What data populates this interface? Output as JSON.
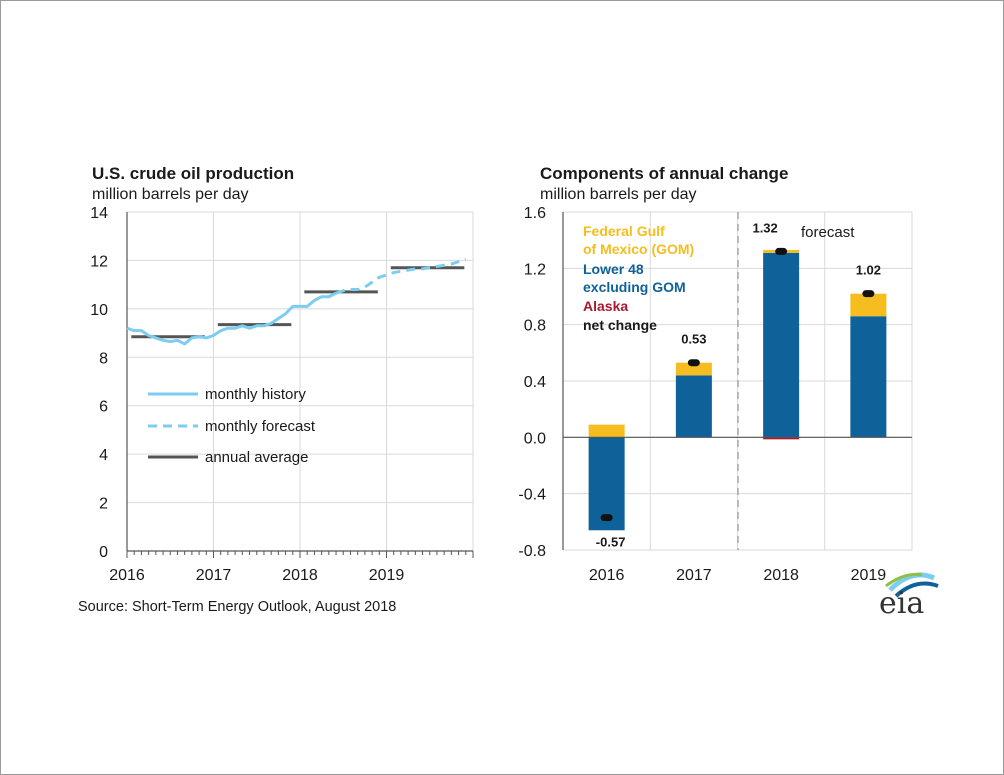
{
  "source": "Source: Short-Term Energy Outlook, August 2018",
  "logo": {
    "text": "eia"
  },
  "chart_data": [
    {
      "type": "line",
      "title": "U.S. crude oil production",
      "subtitle": "million barrels per day",
      "ylim": [
        0,
        14
      ],
      "yticks": [
        0,
        2,
        4,
        6,
        8,
        10,
        12,
        14
      ],
      "xlim": [
        2016,
        2020
      ],
      "xticks": [
        {
          "value": 2016,
          "label": "2016"
        },
        {
          "value": 2017,
          "label": "2017"
        },
        {
          "value": 2018,
          "label": "2018"
        },
        {
          "value": 2019,
          "label": "2019"
        }
      ],
      "grid": true,
      "legend": {
        "position": "lower-left",
        "entries": [
          {
            "label": "monthly history",
            "style": "solid"
          },
          {
            "label": "monthly forecast",
            "style": "dashed"
          },
          {
            "label": "annual average",
            "style": "bar"
          }
        ]
      },
      "colors": {
        "history": "#7ccdf0",
        "forecast": "#7ccdf0",
        "average": "#555555"
      },
      "series": [
        {
          "name": "monthly history",
          "x": [
            2016.0,
            2016.083,
            2016.167,
            2016.25,
            2016.333,
            2016.417,
            2016.5,
            2016.583,
            2016.667,
            2016.75,
            2016.833,
            2016.917,
            2017.0,
            2017.083,
            2017.167,
            2017.25,
            2017.333,
            2017.417,
            2017.5,
            2017.583,
            2017.667,
            2017.75,
            2017.833,
            2017.917,
            2018.0,
            2018.083,
            2018.167,
            2018.25,
            2018.333,
            2018.417
          ],
          "y": [
            9.2,
            9.1,
            9.1,
            8.9,
            8.8,
            8.7,
            8.65,
            8.7,
            8.55,
            8.8,
            8.85,
            8.8,
            8.9,
            9.1,
            9.2,
            9.2,
            9.3,
            9.2,
            9.3,
            9.3,
            9.4,
            9.6,
            9.8,
            10.1,
            10.1,
            10.1,
            10.35,
            10.5,
            10.5,
            10.65
          ]
        },
        {
          "name": "monthly forecast",
          "x": [
            2018.417,
            2018.5,
            2018.583,
            2018.667,
            2018.75,
            2018.833,
            2018.917,
            2019.0,
            2019.083,
            2019.167,
            2019.25,
            2019.333,
            2019.417,
            2019.5,
            2019.583,
            2019.667,
            2019.75,
            2019.833,
            2019.917
          ],
          "y": [
            10.65,
            10.75,
            10.8,
            10.8,
            10.9,
            11.1,
            11.3,
            11.4,
            11.5,
            11.55,
            11.6,
            11.65,
            11.65,
            11.7,
            11.75,
            11.8,
            11.85,
            11.95,
            12.05
          ]
        },
        {
          "name": "annual average",
          "segments": [
            {
              "x0": 2016.05,
              "x1": 2016.9,
              "y": 8.85
            },
            {
              "x0": 2017.05,
              "x1": 2017.9,
              "y": 9.35
            },
            {
              "x0": 2018.05,
              "x1": 2018.9,
              "y": 10.7
            },
            {
              "x0": 2019.05,
              "x1": 2019.9,
              "y": 11.7
            }
          ]
        }
      ]
    },
    {
      "type": "bar",
      "stacked": true,
      "title": "Components of annual change",
      "subtitle": "million barrels per day",
      "ylim": [
        -0.8,
        1.6
      ],
      "yticks": [
        {
          "value": -0.8,
          "label": "-0.8"
        },
        {
          "value": -0.4,
          "label": "-0.4"
        },
        {
          "value": 0.0,
          "label": "0.0"
        },
        {
          "value": 0.4,
          "label": "0.4"
        },
        {
          "value": 0.8,
          "label": "0.8"
        },
        {
          "value": 1.2,
          "label": "1.2"
        },
        {
          "value": 1.6,
          "label": "1.6"
        }
      ],
      "categories": [
        "2016",
        "2017",
        "2018",
        "2019"
      ],
      "grid": true,
      "forecast_label": "forecast",
      "legend": {
        "position": "top-left",
        "entries": [
          {
            "line1": "Federal Gulf",
            "line2": "of Mexico (GOM)",
            "color": "#f5bd1f"
          },
          {
            "line1": "Lower 48",
            "line2": "excluding GOM",
            "color": "#0f6299"
          },
          {
            "line1": "Alaska",
            "line2": "",
            "color": "#a6192e"
          },
          {
            "line1": "net change",
            "line2": "",
            "color": "#1a1a1a"
          }
        ]
      },
      "series": [
        {
          "name": "Federal Gulf of Mexico (GOM)",
          "color": "#f5bd1f",
          "values": [
            0.09,
            0.09,
            0.02,
            0.16
          ]
        },
        {
          "name": "Lower 48 excluding GOM",
          "color": "#0f6299",
          "values": [
            -0.66,
            0.44,
            1.31,
            0.86
          ]
        },
        {
          "name": "Alaska",
          "color": "#a6192e",
          "values": [
            0.0,
            0.0,
            -0.01,
            0.0
          ]
        }
      ],
      "net_change": [
        -0.57,
        0.53,
        1.32,
        1.02
      ],
      "net_labels": [
        "-0.57",
        "0.53",
        "1.32",
        "1.02"
      ]
    }
  ]
}
